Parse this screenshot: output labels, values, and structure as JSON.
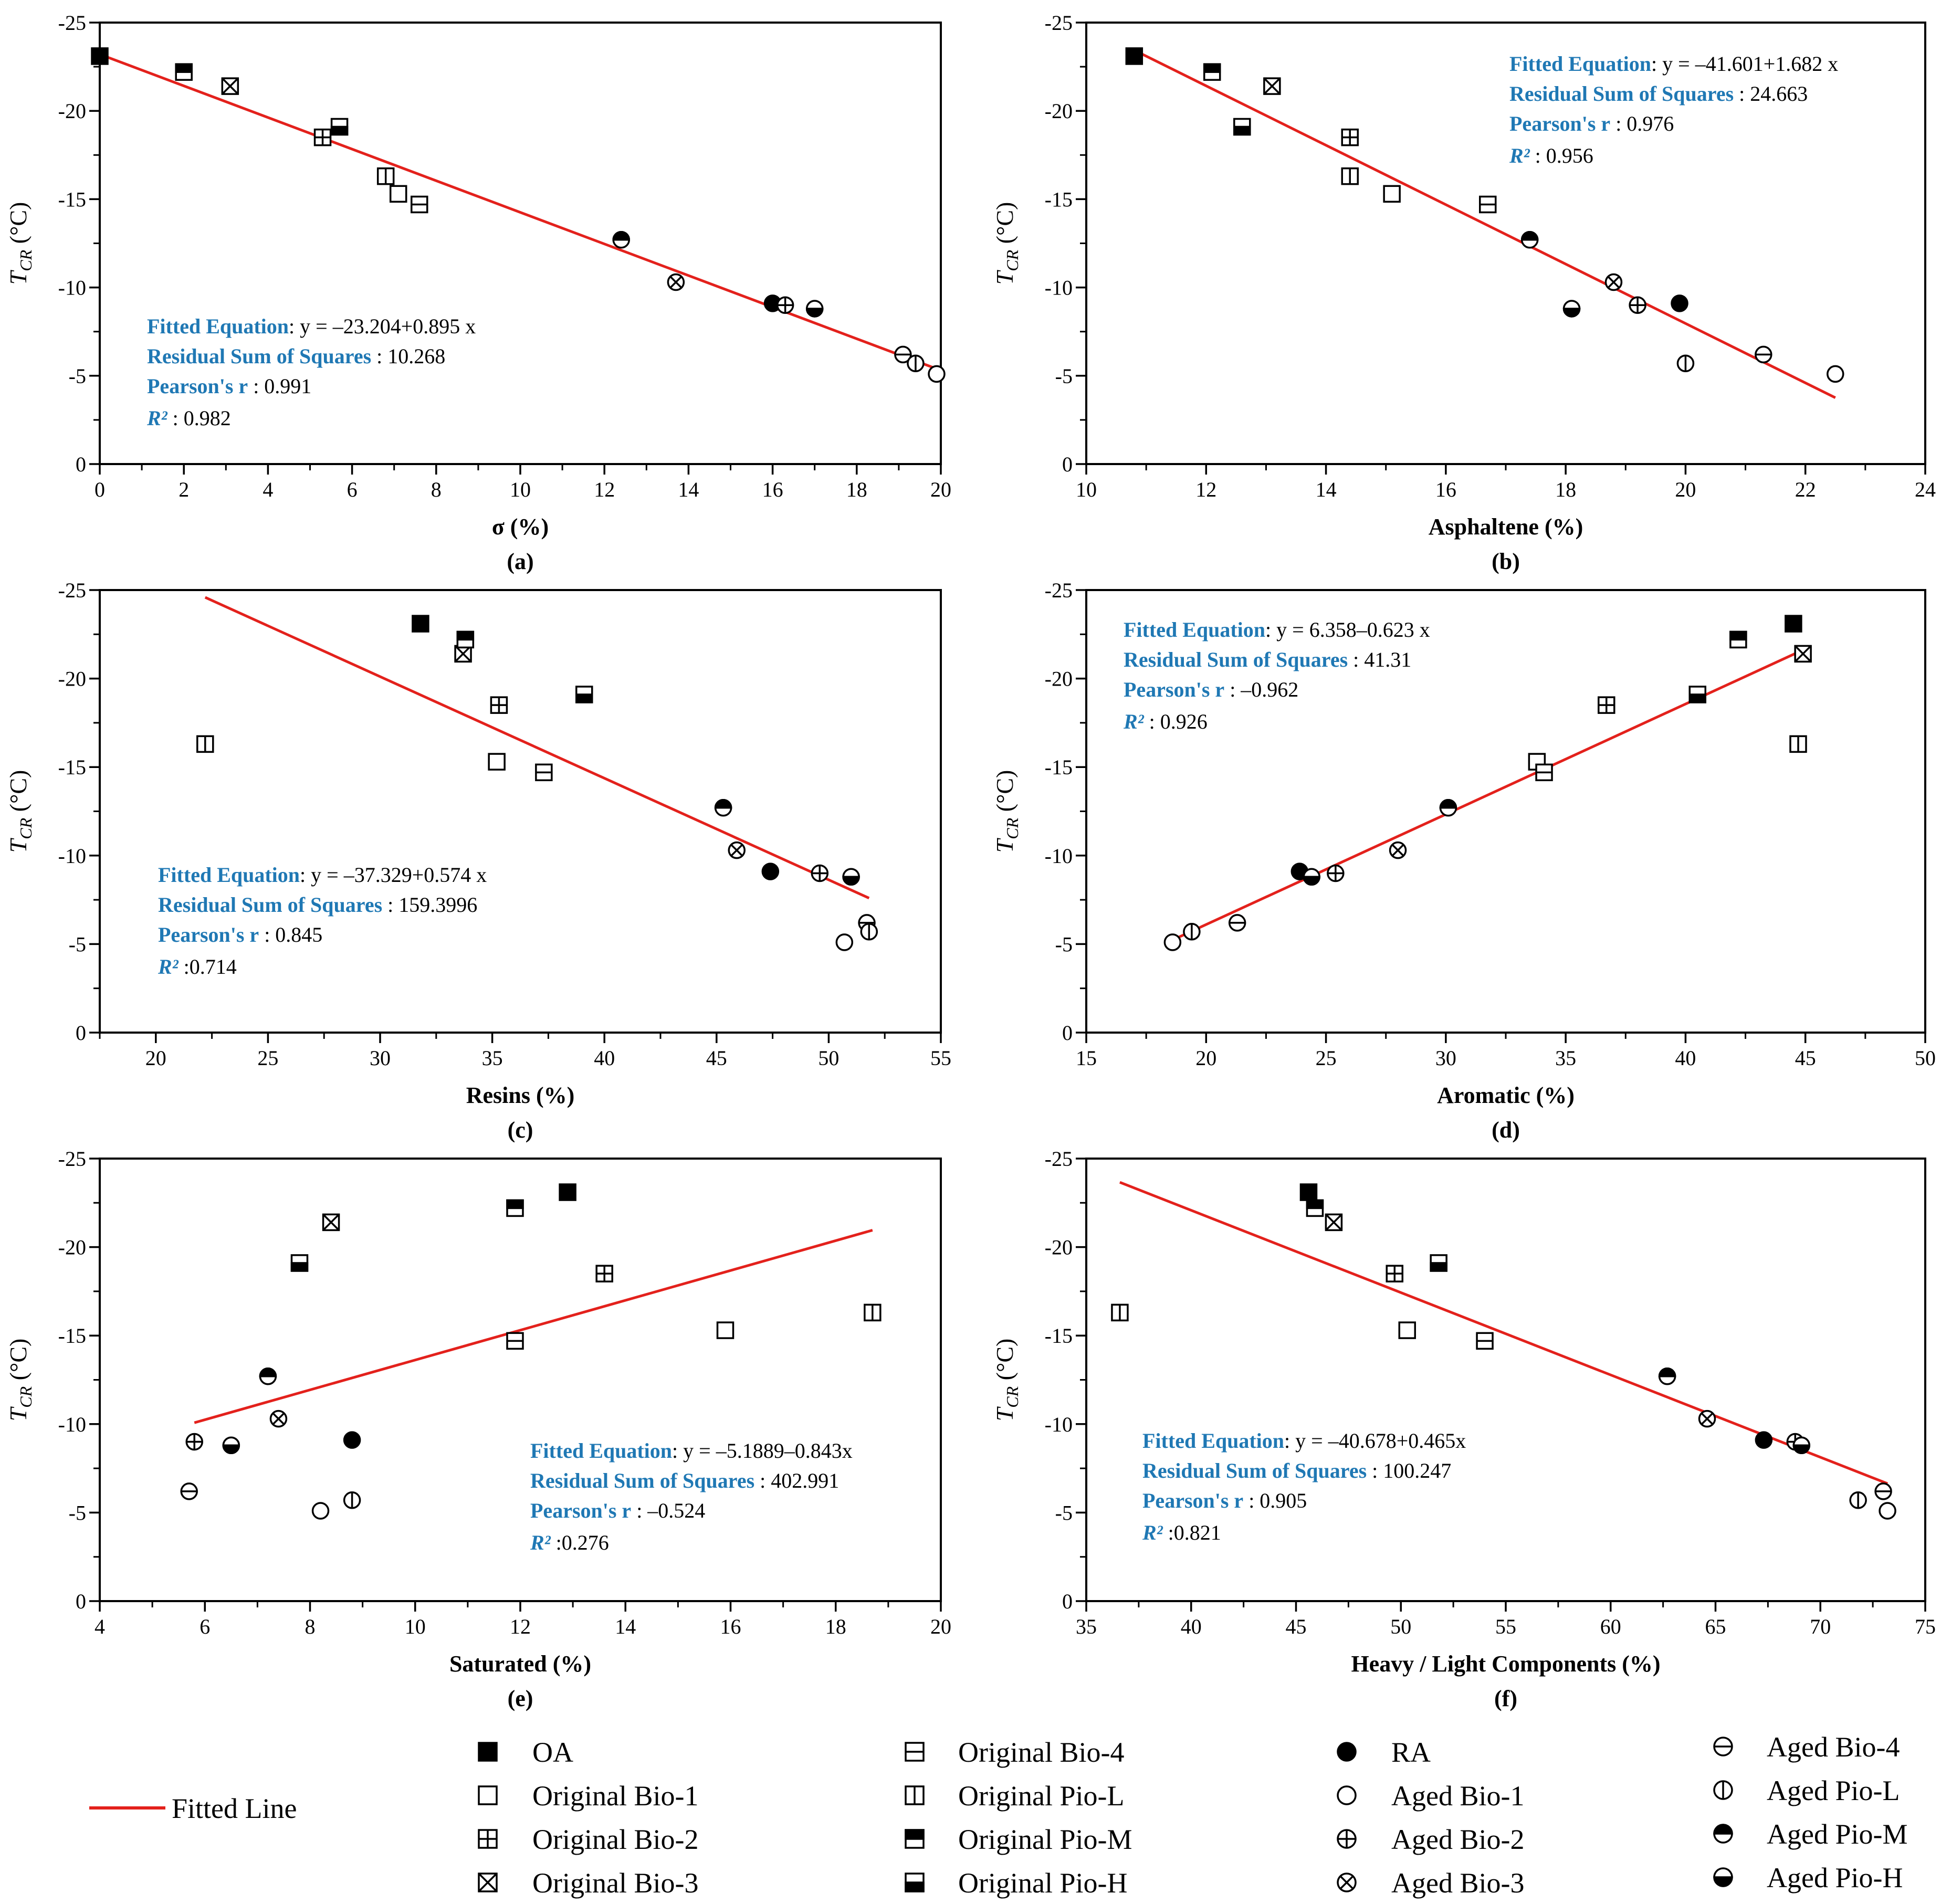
{
  "figure": {
    "legend": {
      "fitted_line_label": "Fitted Line"
    }
  },
  "colors": {
    "fitted_line": "#e3211c",
    "annotation_label": "#1f78b4",
    "marker": "#000000",
    "background": "#ffffff"
  },
  "series": [
    {
      "name": "OA",
      "marker": "square-filled"
    },
    {
      "name": "Original Bio-1",
      "marker": "square-open"
    },
    {
      "name": "Original Bio-2",
      "marker": "square-plus"
    },
    {
      "name": "Original Bio-3",
      "marker": "square-x"
    },
    {
      "name": "Original Bio-4",
      "marker": "square-hline"
    },
    {
      "name": "Original Pio-L",
      "marker": "square-vline"
    },
    {
      "name": "Original Pio-M",
      "marker": "square-top-filled"
    },
    {
      "name": "Original Pio-H",
      "marker": "square-bottom-filled"
    },
    {
      "name": "RA",
      "marker": "circle-filled"
    },
    {
      "name": "Aged Bio-1",
      "marker": "circle-open"
    },
    {
      "name": "Aged Bio-2",
      "marker": "circle-plus"
    },
    {
      "name": "Aged Bio-3",
      "marker": "circle-x"
    },
    {
      "name": "Aged Bio-4",
      "marker": "circle-hline"
    },
    {
      "name": "Aged Pio-L",
      "marker": "circle-vline"
    },
    {
      "name": "Aged Pio-M",
      "marker": "circle-top-filled"
    },
    {
      "name": "Aged Pio-H",
      "marker": "circle-bottom-filled"
    }
  ],
  "chart_data": [
    {
      "type": "scatter",
      "panel_label": "(a)",
      "xlabel": "σ (%)",
      "ylabel": {
        "symbol": "T",
        "subscript": "CR",
        "unit": " (°C)"
      },
      "xlim": [
        0,
        20
      ],
      "ylim": [
        -25,
        0
      ],
      "y_inverted": true,
      "xticks": [
        0,
        2,
        4,
        6,
        8,
        10,
        12,
        14,
        16,
        18,
        20
      ],
      "yticks": [
        -25,
        -20,
        -15,
        -10,
        -5,
        0
      ],
      "x": [
        0,
        7.1,
        5.3,
        3.1,
        7.6,
        6.8,
        2.0,
        5.7,
        16.0,
        19.9,
        16.3,
        13.7,
        19.1,
        19.4,
        12.4,
        17.0
      ],
      "y": [
        -23.1,
        -15.3,
        -18.5,
        -21.4,
        -14.7,
        -16.3,
        -22.2,
        -19.1,
        -9.1,
        -5.1,
        -9.0,
        -10.3,
        -6.2,
        -5.7,
        -12.7,
        -8.8
      ],
      "fit": {
        "intercept": -23.204,
        "slope": 0.895,
        "x_range": [
          0,
          20
        ]
      },
      "annotation": {
        "fit": {
          "label": "Fitted Equation",
          "value": ": y = –23.204+0.895 x"
        },
        "rss": {
          "label": "Residual Sum of Squares",
          "value": " : 10.268"
        },
        "pearson": {
          "label": "Pearson's r",
          "value": " : 0.991"
        },
        "r2": {
          "label": "R²",
          "value": " : 0.982"
        }
      }
    },
    {
      "type": "scatter",
      "panel_label": "(b)",
      "xlabel": "Asphaltene (%)",
      "ylabel": {
        "symbol": "T",
        "subscript": "CR",
        "unit": " (°C)"
      },
      "xlim": [
        10,
        24
      ],
      "ylim": [
        -25,
        0
      ],
      "y_inverted": true,
      "xticks": [
        10,
        12,
        14,
        16,
        18,
        20,
        22,
        24
      ],
      "yticks": [
        -25,
        -20,
        -15,
        -10,
        -5,
        0
      ],
      "x": [
        10.8,
        15.1,
        14.4,
        13.1,
        16.7,
        14.4,
        12.1,
        12.6,
        19.9,
        22.5,
        19.2,
        18.8,
        21.3,
        20.0,
        17.4,
        18.1
      ],
      "y": [
        -23.1,
        -15.3,
        -18.5,
        -21.4,
        -14.7,
        -16.3,
        -22.2,
        -19.1,
        -9.1,
        -5.1,
        -9.0,
        -10.3,
        -6.2,
        -5.7,
        -12.7,
        -8.8
      ],
      "fit": {
        "intercept": -41.601,
        "slope": 1.682,
        "x_range": [
          10.8,
          22.5
        ]
      },
      "annotation": {
        "fit": {
          "label": "Fitted Equation",
          "value": ": y = –41.601+1.682 x"
        },
        "rss": {
          "label": "Residual Sum of Squares",
          "value": " : 24.663"
        },
        "pearson": {
          "label": "Pearson's r",
          "value": " : 0.976"
        },
        "r2": {
          "label": "R²",
          "value": " : 0.956"
        }
      }
    },
    {
      "type": "scatter",
      "panel_label": "(c)",
      "xlabel": "Resins (%)",
      "ylabel": {
        "symbol": "T",
        "subscript": "CR",
        "unit": " (°C)"
      },
      "xlim": [
        17.5,
        55
      ],
      "ylim": [
        -25,
        0
      ],
      "y_inverted": true,
      "xticks": [
        20,
        25,
        30,
        35,
        40,
        45,
        50,
        55
      ],
      "yticks": [
        -25,
        -20,
        -15,
        -10,
        -5,
        0
      ],
      "x": [
        31.8,
        35.2,
        35.3,
        33.7,
        37.3,
        22.2,
        33.8,
        39.1,
        47.4,
        50.7,
        49.6,
        45.9,
        51.7,
        51.8,
        45.3,
        51.0
      ],
      "y": [
        -23.1,
        -15.3,
        -18.5,
        -21.4,
        -14.7,
        -16.3,
        -22.2,
        -19.1,
        -9.1,
        -5.1,
        -9.0,
        -10.3,
        -6.2,
        -5.7,
        -12.7,
        -8.8
      ],
      "fit": {
        "intercept": -37.329,
        "slope": 0.574,
        "x_range": [
          22.2,
          51.8
        ]
      },
      "annotation": {
        "fit": {
          "label": "Fitted Equation",
          "value": ": y = –37.329+0.574 x"
        },
        "rss": {
          "label": "Residual Sum of Squares",
          "value": " : 159.3996"
        },
        "pearson": {
          "label": "Pearson's r",
          "value": " : 0.845"
        },
        "r2": {
          "label": "R²",
          "value": " :0.714"
        }
      }
    },
    {
      "type": "scatter",
      "panel_label": "(d)",
      "xlabel": "Aromatic (%)",
      "ylabel": {
        "symbol": "T",
        "subscript": "CR",
        "unit": " (°C)"
      },
      "xlim": [
        15,
        50
      ],
      "ylim": [
        -25,
        0
      ],
      "y_inverted": true,
      "xticks": [
        15,
        20,
        25,
        30,
        35,
        40,
        45,
        50
      ],
      "yticks": [
        -25,
        -20,
        -15,
        -10,
        -5,
        0
      ],
      "x": [
        44.5,
        33.8,
        36.7,
        44.9,
        34.1,
        44.7,
        42.2,
        40.5,
        23.9,
        18.6,
        25.4,
        28.0,
        21.3,
        19.4,
        30.1,
        24.4
      ],
      "y": [
        -23.1,
        -15.3,
        -18.5,
        -21.4,
        -14.7,
        -16.3,
        -22.2,
        -19.1,
        -9.1,
        -5.1,
        -9.0,
        -10.3,
        -6.2,
        -5.7,
        -12.7,
        -8.8
      ],
      "fit": {
        "intercept": 6.358,
        "slope": -0.623,
        "x_range": [
          18.6,
          44.9
        ]
      },
      "annotation": {
        "fit": {
          "label": "Fitted Equation",
          "value": ": y = 6.358–0.623 x"
        },
        "rss": {
          "label": "Residual Sum of Squares",
          "value": " : 41.31"
        },
        "pearson": {
          "label": "Pearson's r",
          "value": " : –0.962"
        },
        "r2": {
          "label": "R²",
          "value": " : 0.926"
        }
      }
    },
    {
      "type": "scatter",
      "panel_label": "(e)",
      "xlabel": "Saturated (%)",
      "ylabel": {
        "symbol": "T",
        "subscript": "CR",
        "unit": " (°C)"
      },
      "xlim": [
        4,
        20
      ],
      "ylim": [
        -25,
        0
      ],
      "y_inverted": true,
      "xticks": [
        4,
        6,
        8,
        10,
        12,
        14,
        16,
        18,
        20
      ],
      "yticks": [
        -25,
        -20,
        -15,
        -10,
        -5,
        0
      ],
      "x": [
        12.9,
        15.9,
        13.6,
        8.4,
        11.9,
        18.7,
        11.9,
        7.8,
        8.8,
        8.2,
        5.8,
        7.4,
        5.7,
        8.8,
        7.2,
        6.5
      ],
      "y": [
        -23.1,
        -15.3,
        -18.5,
        -21.4,
        -14.7,
        -16.3,
        -22.2,
        -19.1,
        -9.1,
        -5.1,
        -9.0,
        -10.3,
        -6.2,
        -5.7,
        -12.7,
        -8.8
      ],
      "fit": {
        "intercept": -5.1889,
        "slope": -0.843,
        "x_range": [
          5.8,
          18.7
        ]
      },
      "annotation": {
        "fit": {
          "label": "Fitted Equation",
          "value": ": y = –5.1889–0.843x"
        },
        "rss": {
          "label": "Residual Sum of Squares",
          "value": " : 402.991"
        },
        "pearson": {
          "label": "Pearson's r",
          "value": " : –0.524"
        },
        "r2": {
          "label": "R²",
          "value": " :0.276"
        }
      }
    },
    {
      "type": "scatter",
      "panel_label": "(f)",
      "xlabel": "Heavy / Light Components (%)",
      "ylabel": {
        "symbol": "T",
        "subscript": "CR",
        "unit": " (°C)"
      },
      "xlim": [
        35,
        75
      ],
      "ylim": [
        -25,
        0
      ],
      "y_inverted": true,
      "xticks": [
        35,
        40,
        45,
        50,
        55,
        60,
        65,
        70,
        75
      ],
      "yticks": [
        -25,
        -20,
        -15,
        -10,
        -5,
        0
      ],
      "x": [
        45.6,
        50.3,
        49.7,
        46.8,
        54.0,
        36.6,
        45.9,
        51.8,
        67.3,
        73.2,
        68.8,
        64.6,
        73.0,
        71.8,
        62.7,
        69.1
      ],
      "y": [
        -23.1,
        -15.3,
        -18.5,
        -21.4,
        -14.7,
        -16.3,
        -22.2,
        -19.1,
        -9.1,
        -5.1,
        -9.0,
        -10.3,
        -6.2,
        -5.7,
        -12.7,
        -8.8
      ],
      "fit": {
        "intercept": -40.678,
        "slope": 0.465,
        "x_range": [
          36.6,
          73.2
        ]
      },
      "annotation": {
        "fit": {
          "label": "Fitted Equation",
          "value": ": y = –40.678+0.465x"
        },
        "rss": {
          "label": "Residual Sum of Squares",
          "value": " : 100.247"
        },
        "pearson": {
          "label": "Pearson's r",
          "value": " : 0.905"
        },
        "r2": {
          "label": "R²",
          "value": " :0.821"
        }
      }
    }
  ]
}
